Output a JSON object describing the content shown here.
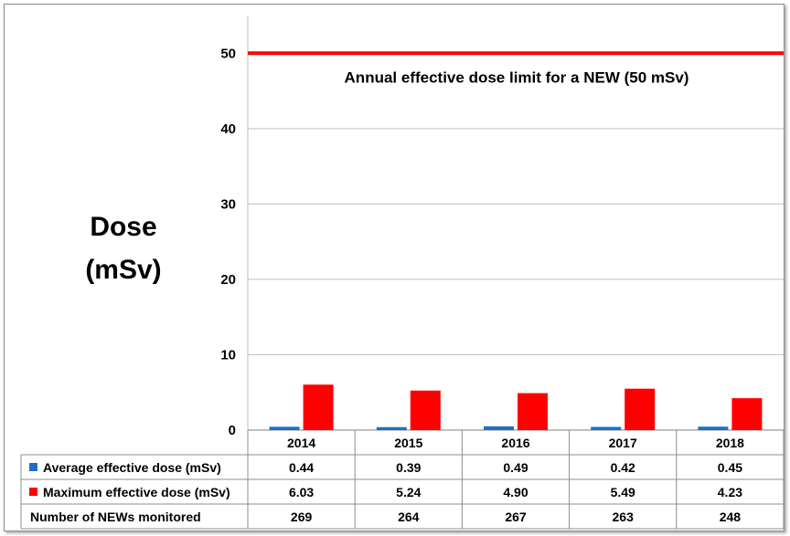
{
  "chart_data": {
    "type": "bar",
    "ylabel_lines": [
      "Dose",
      "(mSv)"
    ],
    "ylim": [
      0,
      55
    ],
    "yticks": [
      0,
      10,
      20,
      30,
      40,
      50
    ],
    "categories": [
      "2014",
      "2015",
      "2016",
      "2017",
      "2018"
    ],
    "series": [
      {
        "name": "Average effective dose (mSv)",
        "color": "#1f6fc0",
        "values": [
          0.44,
          0.39,
          0.49,
          0.42,
          0.45
        ],
        "labels": [
          "0.44",
          "0.39",
          "0.49",
          "0.42",
          "0.45"
        ]
      },
      {
        "name": "Maximum effective dose (mSv)",
        "color": "#ff0000",
        "values": [
          6.03,
          5.24,
          4.9,
          5.49,
          4.23
        ],
        "labels": [
          "6.03",
          "5.24",
          "4.90",
          "5.49",
          "4.23"
        ]
      }
    ],
    "extra_row": {
      "name": "Number of NEWs monitored",
      "values": [
        "269",
        "264",
        "267",
        "263",
        "248"
      ]
    },
    "reference_line": {
      "value": 50,
      "color": "#ff0000",
      "label": "Annual effective dose limit for a NEW (50 mSv)"
    },
    "grid": true
  }
}
